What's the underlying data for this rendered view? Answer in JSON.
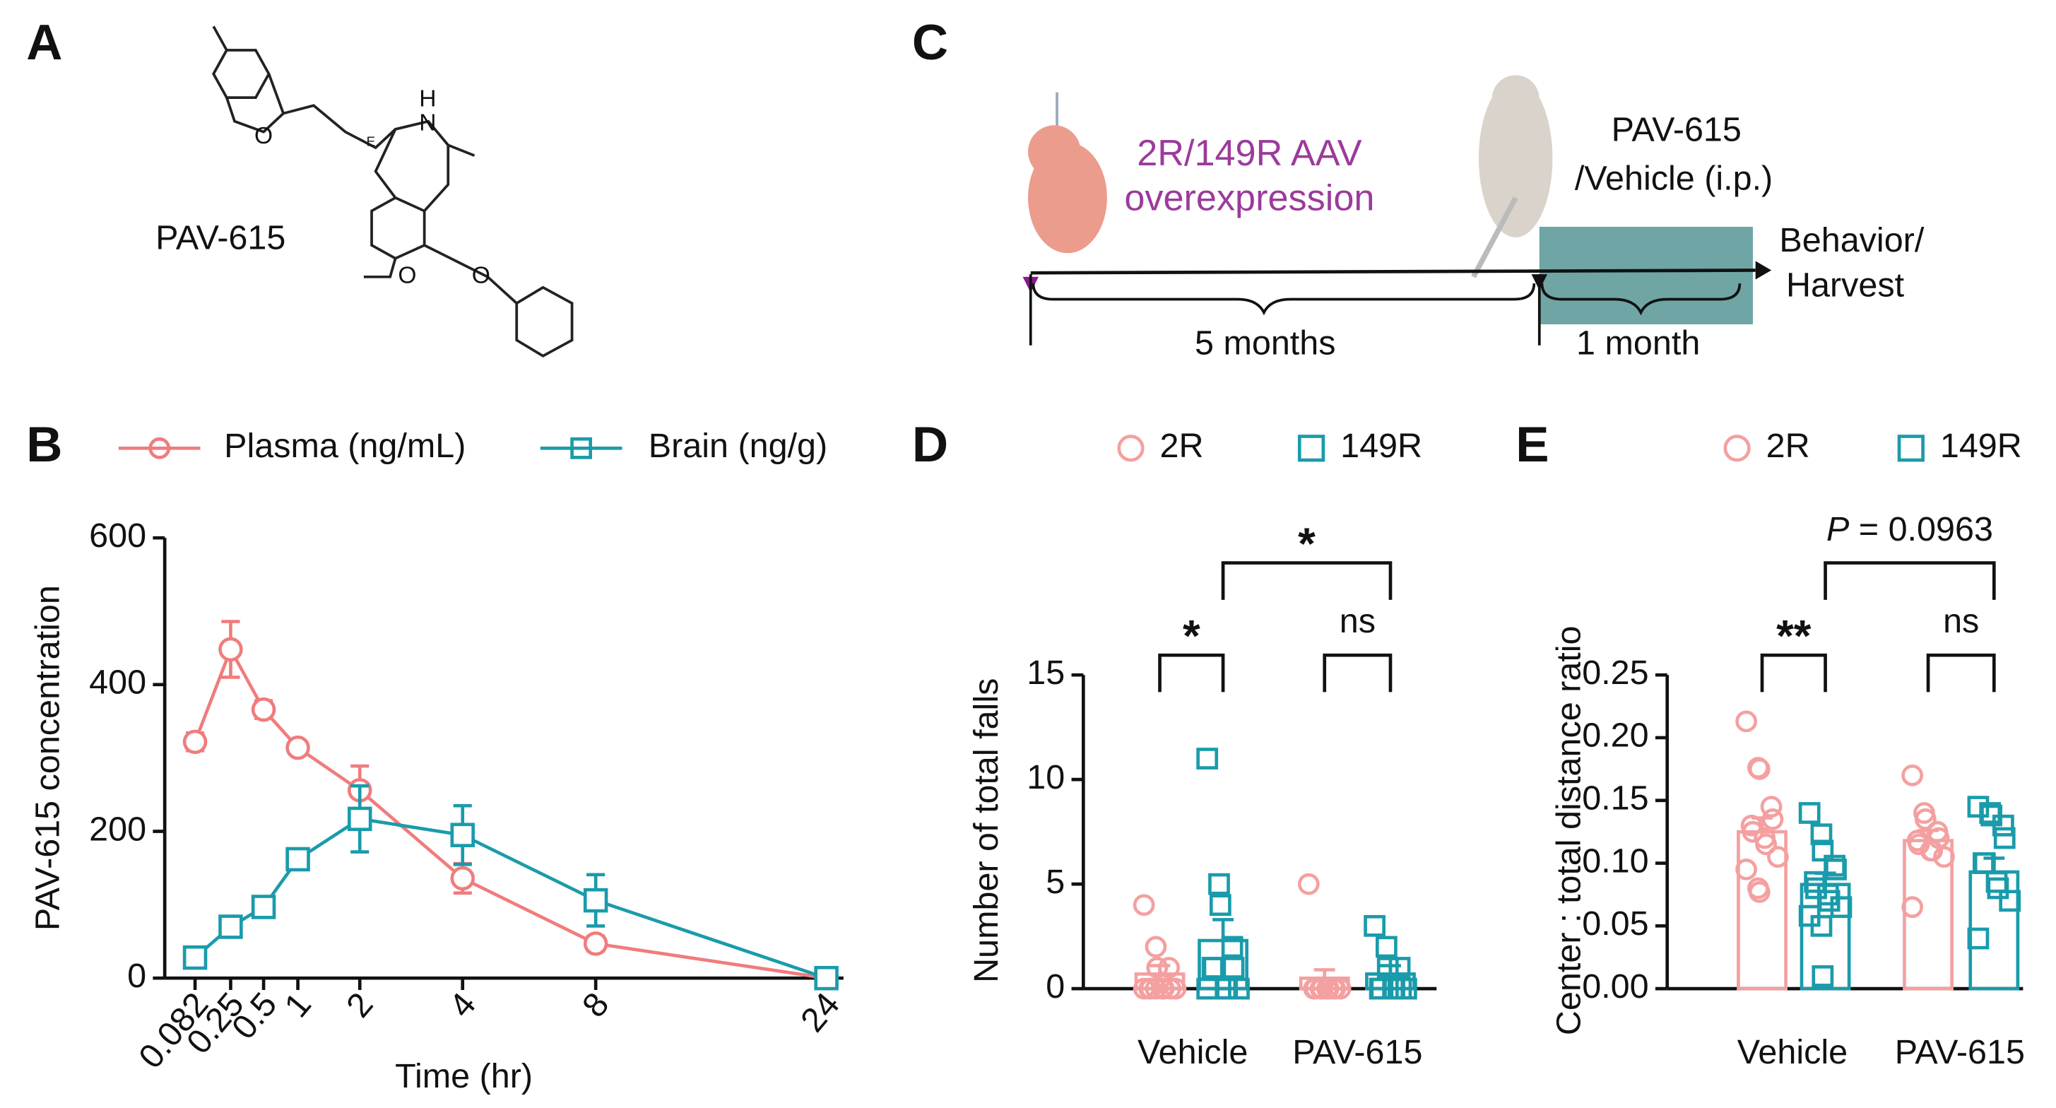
{
  "panels": {
    "a": "A",
    "b": "B",
    "c": "C",
    "d": "D",
    "e": "E"
  },
  "structure": {
    "name": "PAV-615",
    "atoms": [
      "N",
      "H",
      "O",
      "O",
      "O",
      "E"
    ]
  },
  "timeline": {
    "injection": [
      "2R/149R AAV",
      "overexpression"
    ],
    "treatment": [
      "PAV-615",
      "/Vehicle (i.p.)"
    ],
    "endpoint": [
      "Behavior/",
      "Harvest"
    ],
    "durations": [
      "5 months",
      "1 month"
    ]
  },
  "chart_data": [
    {
      "type": "line",
      "xlabel": "Time (hr)",
      "ylabel": "PAV-615 concentration",
      "x": [
        0.082,
        0.25,
        0.5,
        1,
        2,
        4,
        8,
        24
      ],
      "xticks": [
        0.082,
        0.25,
        0.5,
        1,
        2,
        4,
        8,
        24
      ],
      "ylim": [
        0,
        600
      ],
      "yticks": [
        0,
        200,
        400,
        600
      ],
      "series": [
        {
          "name": "Plasma (ng/mL)",
          "color": "#f07c7c",
          "marker": "circle",
          "values": [
            322,
            448,
            366,
            314,
            256,
            136,
            47,
            0
          ],
          "errors": [
            12,
            38,
            12,
            5,
            33,
            20,
            10,
            0
          ]
        },
        {
          "name": "Brain (ng/g)",
          "color": "#1a9bab",
          "marker": "square",
          "values": [
            28,
            70,
            97,
            162,
            217,
            195,
            106,
            0
          ],
          "errors": [
            0,
            5,
            5,
            5,
            45,
            40,
            35,
            0
          ]
        }
      ]
    },
    {
      "type": "bar",
      "ylabel": "Number of total falls",
      "categories": [
        "Vehicle",
        "PAV-615"
      ],
      "ylim": [
        0,
        15
      ],
      "yticks": [
        0,
        5,
        10,
        15
      ],
      "series": [
        {
          "name": "2R",
          "color": "#f4a0a0",
          "marker": "circle",
          "values": [
            0.7,
            0.5
          ],
          "errors": [
            0.4,
            0.4
          ],
          "points": [
            [
              4,
              2,
              1,
              1,
              0,
              0,
              0,
              0,
              0,
              0,
              0,
              0
            ],
            [
              5,
              0,
              0,
              0,
              0,
              0,
              0,
              0,
              0,
              0
            ]
          ]
        },
        {
          "name": "149R",
          "color": "#1a9bab",
          "marker": "square",
          "values": [
            2.3,
            0.7
          ],
          "errors": [
            1.0,
            0.4
          ],
          "points": [
            [
              11,
              5,
              4,
              2,
              1,
              1,
              1,
              0,
              0,
              0,
              0
            ],
            [
              3,
              2,
              1,
              1,
              0,
              0,
              0,
              0,
              0,
              0
            ]
          ]
        }
      ],
      "annotations": [
        {
          "text": "*"
        },
        {
          "text": "ns"
        },
        {
          "text": "*"
        }
      ]
    },
    {
      "type": "bar",
      "ylabel": "Center : total distance ratio",
      "categories": [
        "Vehicle",
        "PAV-615"
      ],
      "ylim": [
        0,
        0.25
      ],
      "yticks": [
        {
          "value": 0,
          "label": "0.00"
        },
        0.05,
        {
          "value": 0.1,
          "label": "0.10"
        },
        0.15,
        {
          "value": 0.2,
          "label": "0.20"
        },
        0.25
      ],
      "series": [
        {
          "name": "2R",
          "color": "#f4a0a0",
          "marker": "circle",
          "values": [
            0.125,
            0.118
          ],
          "errors": [
            0.011,
            0.008
          ],
          "points": [
            [
              0.213,
              0.176,
              0.175,
              0.145,
              0.135,
              0.13,
              0.125,
              0.12,
              0.115,
              0.105,
              0.095,
              0.08,
              0.077
            ],
            [
              0.17,
              0.14,
              0.135,
              0.125,
              0.12,
              0.118,
              0.115,
              0.11,
              0.11,
              0.105,
              0.065
            ]
          ]
        },
        {
          "name": "149R",
          "color": "#1a9bab",
          "marker": "square",
          "values": [
            0.083,
            0.093
          ],
          "errors": [
            0.009,
            0.011
          ],
          "points": [
            [
              0.14,
              0.123,
              0.11,
              0.098,
              0.095,
              0.085,
              0.08,
              0.075,
              0.07,
              0.065,
              0.058,
              0.05,
              0.01
            ],
            [
              0.145,
              0.14,
              0.138,
              0.13,
              0.12,
              0.1,
              0.1,
              0.085,
              0.08,
              0.07,
              0.04
            ]
          ]
        }
      ],
      "annotations": [
        {
          "text": "**"
        },
        {
          "text": "ns"
        },
        {
          "italic": "P",
          "text": "= 0.0963"
        }
      ]
    }
  ]
}
